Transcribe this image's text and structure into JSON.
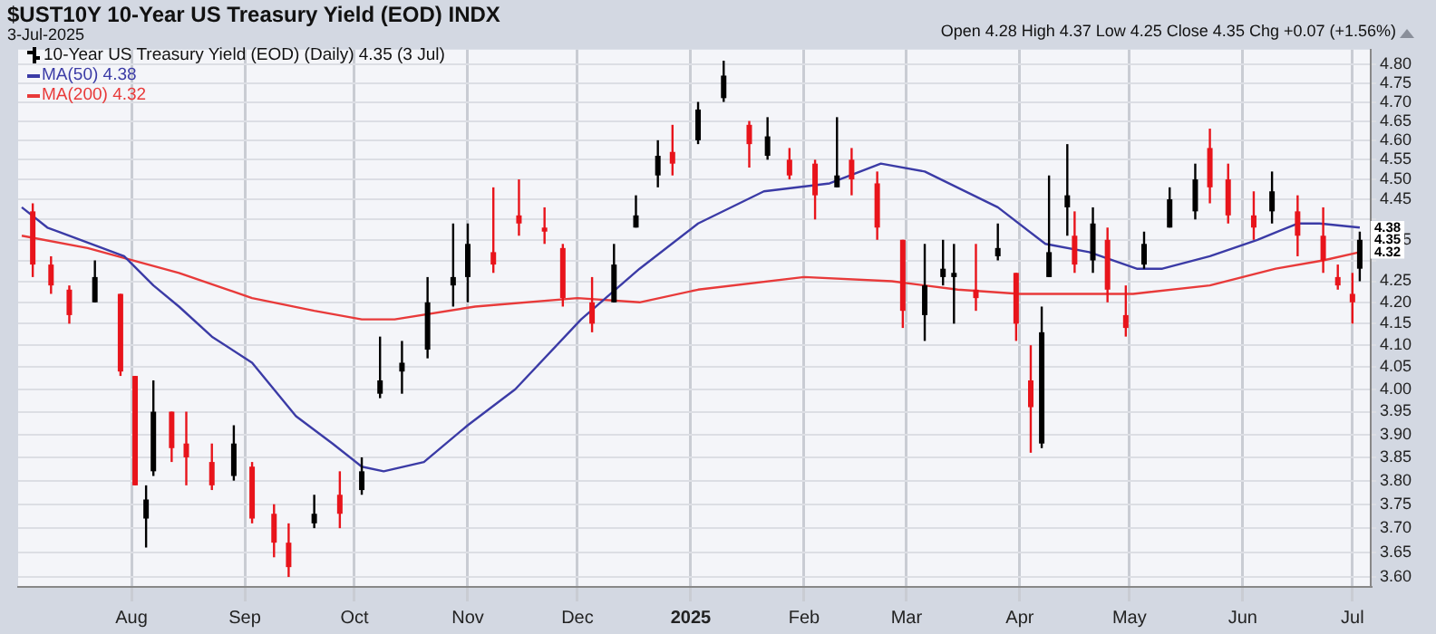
{
  "chart_data": {
    "type": "candlestick",
    "title": "$UST10Y 10-Year US Treasury Yield (EOD) INDX",
    "subtitle": "3-Jul-2025",
    "annotations": [
      "Open 4.28 High 4.37 Low 4.25 Close 4.35 Chg +0.07 (+1.56%)",
      {
        "text": "4.38",
        "x": "2025-07-03",
        "y": 4.38
      },
      {
        "text": "4.35",
        "x": "2025-07-03",
        "y": 4.35
      },
      {
        "text": "4.32",
        "x": "2025-07-03",
        "y": 4.32
      }
    ],
    "log": true,
    "grid": true,
    "legend": "top left",
    "xlim": [
      "2024-07-01",
      "2025-07-06"
    ],
    "xticks": [
      {
        "value": "2024-08-01",
        "label": "Aug"
      },
      {
        "value": "2024-09-01",
        "label": "Sep"
      },
      {
        "value": "2024-10-01",
        "label": "Oct"
      },
      {
        "value": "2024-11-01",
        "label": "Nov"
      },
      {
        "value": "2024-12-01",
        "label": "Dec"
      },
      {
        "value": "2025-01-01",
        "label": "2025"
      },
      {
        "value": "2025-02-01",
        "label": "Feb"
      },
      {
        "value": "2025-03-01",
        "label": "Mar"
      },
      {
        "value": "2025-04-01",
        "label": "Apr"
      },
      {
        "value": "2025-05-01",
        "label": "May"
      },
      {
        "value": "2025-06-01",
        "label": "Jun"
      },
      {
        "value": "2025-07-01",
        "label": "Jul"
      }
    ],
    "ylim": [
      3.58,
      4.84
    ],
    "yticks": [
      {
        "value": 3.6,
        "label": "3.60"
      },
      3.65,
      {
        "value": 3.7,
        "label": "3.70"
      },
      3.75,
      {
        "value": 3.8,
        "label": "3.80"
      },
      3.85,
      {
        "value": 3.9,
        "label": "3.90"
      },
      3.95,
      {
        "value": 4.0,
        "label": "4.00"
      },
      4.05,
      {
        "value": 4.1,
        "label": "4.10"
      },
      4.15,
      {
        "value": 4.2,
        "label": "4.20"
      },
      4.25,
      {
        "value": 4.3,
        "label": null
      },
      4.35,
      {
        "value": 4.4,
        "label": null
      },
      4.45,
      {
        "value": 4.5,
        "label": "4.50"
      },
      4.55,
      {
        "value": 4.6,
        "label": "4.60"
      },
      4.65,
      {
        "value": 4.7,
        "label": "4.70"
      },
      4.75,
      {
        "value": 4.8,
        "label": "4.80"
      }
    ],
    "series": [
      {
        "name": "10-Year US Treasury Yield (EOD) (Daily) 4.35 (3 Jul)",
        "x": [
          "2024-07-05",
          "2024-07-10",
          "2024-07-15",
          "2024-07-22",
          "2024-07-29",
          "2024-08-02",
          "2024-08-05",
          "2024-08-07",
          "2024-08-12",
          "2024-08-16",
          "2024-08-23",
          "2024-08-29",
          "2024-09-03",
          "2024-09-09",
          "2024-09-13",
          "2024-09-20",
          "2024-09-27",
          "2024-10-03",
          "2024-10-08",
          "2024-10-14",
          "2024-10-21",
          "2024-10-28",
          "2024-11-01",
          "2024-11-08",
          "2024-11-15",
          "2024-11-22",
          "2024-11-27",
          "2024-12-05",
          "2024-12-11",
          "2024-12-17",
          "2024-12-23",
          "2024-12-27",
          "2025-01-03",
          "2025-01-10",
          "2025-01-17",
          "2025-01-22",
          "2025-01-28",
          "2025-02-04",
          "2025-02-10",
          "2025-02-14",
          "2025-02-21",
          "2025-02-28",
          "2025-03-06",
          "2025-03-11",
          "2025-03-14",
          "2025-03-20",
          "2025-03-26",
          "2025-03-31",
          "2025-04-04",
          "2025-04-07",
          "2025-04-09",
          "2025-04-14",
          "2025-04-16",
          "2025-04-21",
          "2025-04-25",
          "2025-04-30",
          "2025-05-05",
          "2025-05-12",
          "2025-05-19",
          "2025-05-23",
          "2025-05-28",
          "2025-06-04",
          "2025-06-09",
          "2025-06-16",
          "2025-06-23",
          "2025-06-27",
          "2025-07-01",
          "2025-07-03"
        ],
        "ohlc": [
          [
            4.42,
            4.44,
            4.26,
            4.29
          ],
          [
            4.29,
            4.31,
            4.22,
            4.24
          ],
          [
            4.23,
            4.24,
            4.15,
            4.17
          ],
          [
            4.2,
            4.3,
            4.2,
            4.26
          ],
          [
            4.22,
            4.22,
            4.03,
            4.04
          ],
          [
            4.03,
            4.03,
            3.79,
            3.79
          ],
          [
            3.72,
            3.79,
            3.66,
            3.76
          ],
          [
            3.82,
            4.02,
            3.81,
            3.95
          ],
          [
            3.95,
            3.95,
            3.84,
            3.87
          ],
          [
            3.88,
            3.95,
            3.79,
            3.85
          ],
          [
            3.84,
            3.88,
            3.78,
            3.79
          ],
          [
            3.81,
            3.92,
            3.8,
            3.88
          ],
          [
            3.83,
            3.84,
            3.71,
            3.72
          ],
          [
            3.73,
            3.75,
            3.64,
            3.67
          ],
          [
            3.67,
            3.71,
            3.6,
            3.62
          ],
          [
            3.71,
            3.77,
            3.7,
            3.73
          ],
          [
            3.77,
            3.82,
            3.7,
            3.73
          ],
          [
            3.78,
            3.85,
            3.77,
            3.82
          ],
          [
            3.99,
            4.12,
            3.98,
            4.02
          ],
          [
            4.04,
            4.11,
            3.99,
            4.06
          ],
          [
            4.09,
            4.26,
            4.07,
            4.2
          ],
          [
            4.24,
            4.39,
            4.19,
            4.26
          ],
          [
            4.26,
            4.39,
            4.2,
            4.34
          ],
          [
            4.32,
            4.48,
            4.27,
            4.29
          ],
          [
            4.41,
            4.5,
            4.36,
            4.39
          ],
          [
            4.38,
            4.43,
            4.34,
            4.37
          ],
          [
            4.33,
            4.34,
            4.19,
            4.21
          ],
          [
            4.2,
            4.26,
            4.13,
            4.15
          ],
          [
            4.2,
            4.34,
            4.2,
            4.29
          ],
          [
            4.38,
            4.46,
            4.38,
            4.41
          ],
          [
            4.51,
            4.6,
            4.48,
            4.56
          ],
          [
            4.57,
            4.64,
            4.51,
            4.54
          ],
          [
            4.6,
            4.7,
            4.59,
            4.68
          ],
          [
            4.71,
            4.81,
            4.7,
            4.77
          ],
          [
            4.64,
            4.65,
            4.53,
            4.59
          ],
          [
            4.56,
            4.66,
            4.55,
            4.61
          ],
          [
            4.55,
            4.58,
            4.5,
            4.51
          ],
          [
            4.54,
            4.55,
            4.4,
            4.46
          ],
          [
            4.48,
            4.66,
            4.48,
            4.51
          ],
          [
            4.55,
            4.58,
            4.46,
            4.5
          ],
          [
            4.49,
            4.52,
            4.35,
            4.38
          ],
          [
            4.35,
            4.35,
            4.14,
            4.18
          ],
          [
            4.17,
            4.34,
            4.11,
            4.24
          ],
          [
            4.26,
            4.35,
            4.24,
            4.28
          ],
          [
            4.26,
            4.34,
            4.15,
            4.27
          ],
          [
            4.23,
            4.34,
            4.18,
            4.21
          ],
          [
            4.31,
            4.39,
            4.3,
            4.33
          ],
          [
            4.27,
            4.27,
            4.11,
            4.15
          ],
          [
            4.02,
            4.1,
            3.86,
            3.96
          ],
          [
            3.88,
            4.19,
            3.87,
            4.13
          ],
          [
            4.26,
            4.51,
            4.26,
            4.32
          ],
          [
            4.43,
            4.59,
            4.36,
            4.46
          ],
          [
            4.36,
            4.42,
            4.27,
            4.29
          ],
          [
            4.3,
            4.43,
            4.27,
            4.39
          ],
          [
            4.35,
            4.38,
            4.2,
            4.23
          ],
          [
            4.17,
            4.24,
            4.12,
            4.14
          ],
          [
            4.29,
            4.37,
            4.28,
            4.34
          ],
          [
            4.38,
            4.48,
            4.38,
            4.45
          ],
          [
            4.42,
            4.54,
            4.4,
            4.5
          ],
          [
            4.58,
            4.63,
            4.44,
            4.48
          ],
          [
            4.5,
            4.54,
            4.39,
            4.41
          ],
          [
            4.41,
            4.47,
            4.35,
            4.38
          ],
          [
            4.42,
            4.52,
            4.39,
            4.47
          ],
          [
            4.42,
            4.46,
            4.31,
            4.36
          ],
          [
            4.36,
            4.43,
            4.27,
            4.3
          ],
          [
            4.26,
            4.29,
            4.23,
            4.24
          ],
          [
            4.22,
            4.27,
            4.15,
            4.2
          ],
          [
            4.28,
            4.37,
            4.25,
            4.35
          ]
        ],
        "colors": [
          "#e8141b",
          "#e8141b",
          "#e8141b",
          "#000000",
          "#e8141b",
          "#e8141b",
          "#000000",
          "#000000",
          "#e8141b",
          "#e8141b",
          "#e8141b",
          "#000000",
          "#e8141b",
          "#e8141b",
          "#e8141b",
          "#000000",
          "#e8141b",
          "#000000",
          "#000000",
          "#000000",
          "#000000",
          "#000000",
          "#000000",
          "#e8141b",
          "#e8141b",
          "#e8141b",
          "#e8141b",
          "#e8141b",
          "#000000",
          "#000000",
          "#000000",
          "#e8141b",
          "#000000",
          "#000000",
          "#e8141b",
          "#000000",
          "#e8141b",
          "#e8141b",
          "#000000",
          "#e8141b",
          "#e8141b",
          "#e8141b",
          "#000000",
          "#000000",
          "#000000",
          "#e8141b",
          "#000000",
          "#e8141b",
          "#e8141b",
          "#000000",
          "#000000",
          "#000000",
          "#e8141b",
          "#000000",
          "#e8141b",
          "#e8141b",
          "#000000",
          "#000000",
          "#000000",
          "#e8141b",
          "#e8141b",
          "#e8141b",
          "#000000",
          "#e8141b",
          "#e8141b",
          "#e8141b",
          "#e8141b",
          "#000000"
        ]
      },
      {
        "type": "line",
        "name": "MA(50) 4.38",
        "color": "#3b3ba6",
        "x": [
          "2024-07-02",
          "2024-07-09",
          "2024-07-30",
          "2024-08-07",
          "2024-08-14",
          "2024-08-23",
          "2024-09-03",
          "2024-09-15",
          "2024-09-25",
          "2024-10-03",
          "2024-10-09",
          "2024-10-20",
          "2024-11-01",
          "2024-11-14",
          "2024-12-02",
          "2024-12-18",
          "2025-01-03",
          "2025-01-21",
          "2025-02-08",
          "2025-02-22",
          "2025-03-06",
          "2025-03-26",
          "2025-04-08",
          "2025-04-20",
          "2025-05-03",
          "2025-05-10",
          "2025-05-23",
          "2025-06-05",
          "2025-06-16",
          "2025-06-22",
          "2025-07-03"
        ],
        "values": [
          4.43,
          4.38,
          4.31,
          4.24,
          4.19,
          4.12,
          4.06,
          3.94,
          3.88,
          3.83,
          3.82,
          3.84,
          3.92,
          4.0,
          4.16,
          4.28,
          4.39,
          4.47,
          4.49,
          4.54,
          4.52,
          4.43,
          4.34,
          4.32,
          4.28,
          4.28,
          4.31,
          4.35,
          4.39,
          4.39,
          4.38
        ]
      },
      {
        "type": "line",
        "name": "MA(200) 4.32",
        "color": "#e83a3a",
        "x": [
          "2024-07-02",
          "2024-07-20",
          "2024-08-14",
          "2024-09-03",
          "2024-09-20",
          "2024-10-03",
          "2024-10-12",
          "2024-11-03",
          "2024-12-01",
          "2024-12-18",
          "2025-01-03",
          "2025-02-01",
          "2025-02-25",
          "2025-03-15",
          "2025-04-01",
          "2025-05-02",
          "2025-05-23",
          "2025-06-10",
          "2025-06-23",
          "2025-07-03"
        ],
        "values": [
          4.36,
          4.33,
          4.27,
          4.21,
          4.18,
          4.16,
          4.16,
          4.19,
          4.21,
          4.2,
          4.23,
          4.26,
          4.25,
          4.23,
          4.22,
          4.22,
          4.24,
          4.28,
          4.3,
          4.32
        ]
      }
    ]
  }
}
